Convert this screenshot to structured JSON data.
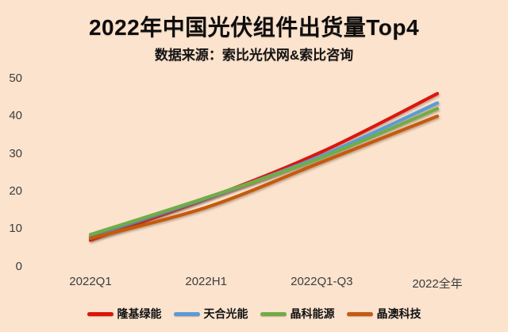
{
  "header": {
    "title": "2022年中国光伏组件出货量Top4",
    "subtitle": "数据来源：索比光伏网&索比咨询"
  },
  "chart_data": {
    "type": "line",
    "title": "2022年中国光伏组件出货量Top4",
    "subtitle": "数据来源：索比光伏网&索比咨询",
    "categories": [
      "2022Q1",
      "2022H1",
      "2022Q1-Q3",
      "2022全年"
    ],
    "series": [
      {
        "id": "longi",
        "name": "隆基绿能",
        "color": "#DC1508",
        "values": [
          7.0,
          18.0,
          30.5,
          46.0
        ]
      },
      {
        "id": "trina",
        "name": "天合光能",
        "color": "#5B9BD5",
        "values": [
          8.0,
          18.1,
          29.5,
          43.5
        ]
      },
      {
        "id": "jinko",
        "name": "晶科能源",
        "color": "#70AD47",
        "values": [
          8.5,
          18.3,
          29.0,
          42.0
        ]
      },
      {
        "id": "ja",
        "name": "晶澳科技",
        "color": "#C55A11",
        "values": [
          7.5,
          15.7,
          27.8,
          40.0
        ]
      }
    ],
    "yticks": [
      50,
      40,
      30,
      20,
      10,
      0
    ],
    "ylim": [
      0,
      50
    ],
    "grid": false,
    "axes_visible": false,
    "legend_position": "bottom",
    "background_color": "#FBE3CE",
    "axis_text_color": "#3D3D3D",
    "line_style": "smooth"
  }
}
